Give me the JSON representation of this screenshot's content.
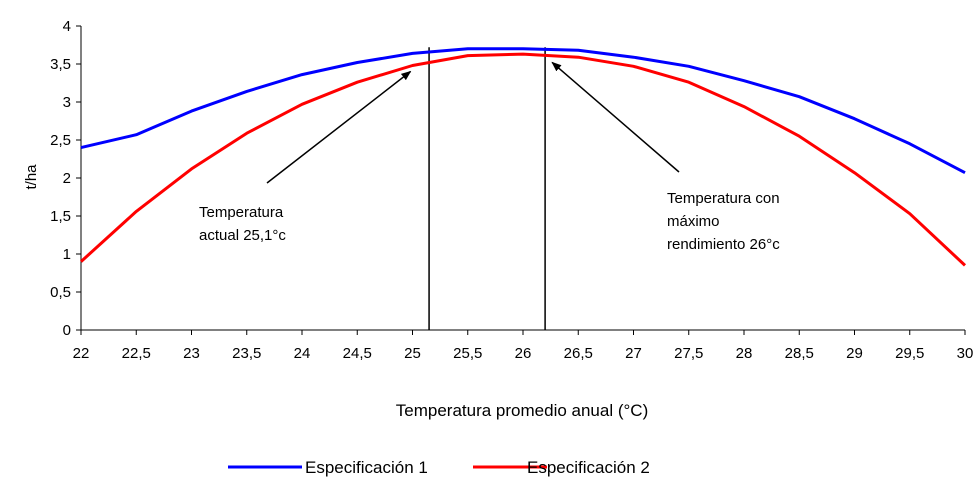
{
  "chart_data": {
    "type": "line",
    "xlabel": "Temperatura promedio anual (°C)",
    "ylabel": "t/ha",
    "xlim": [
      22,
      30
    ],
    "ylim": [
      0,
      4
    ],
    "x": [
      22,
      22.5,
      23,
      23.5,
      24,
      24.5,
      25,
      25.5,
      26,
      26.5,
      27,
      27.5,
      28,
      28.5,
      29,
      29.5,
      30
    ],
    "x_tick_labels": [
      "22",
      "22,5",
      "23",
      "23,5",
      "24",
      "24,5",
      "25",
      "25,5",
      "26",
      "26,5",
      "27",
      "27,5",
      "28",
      "28,5",
      "29",
      "29,5",
      "30"
    ],
    "y_ticks": [
      0,
      0.5,
      1,
      1.5,
      2,
      2.5,
      3,
      3.5,
      4
    ],
    "y_tick_labels": [
      "0",
      "0,5",
      "1",
      "1,5",
      "2",
      "2,5",
      "3",
      "3,5",
      "4"
    ],
    "series": [
      {
        "name": "Especificación 1",
        "color": "#0000ff",
        "values": [
          2.4,
          2.57,
          2.88,
          3.14,
          3.36,
          3.52,
          3.64,
          3.7,
          3.7,
          3.68,
          3.59,
          3.47,
          3.28,
          3.07,
          2.78,
          2.45,
          2.07
        ]
      },
      {
        "name": "Especificación 2",
        "color": "#ff0000",
        "values": [
          0.9,
          1.56,
          2.12,
          2.59,
          2.97,
          3.26,
          3.48,
          3.61,
          3.63,
          3.59,
          3.47,
          3.26,
          2.94,
          2.55,
          2.07,
          1.53,
          0.85
        ]
      }
    ],
    "vertical_lines": [
      25.15,
      26.2
    ],
    "annotations": [
      {
        "lines": [
          "Temperatura",
          "actual 25,1°c"
        ],
        "points_to": [
          25.0,
          3.48
        ]
      },
      {
        "lines": [
          "Temperatura con",
          "máximo",
          "rendimiento 26°c"
        ],
        "points_to": [
          26.3,
          3.6
        ]
      }
    ],
    "grid": false,
    "legend": "bottom"
  }
}
